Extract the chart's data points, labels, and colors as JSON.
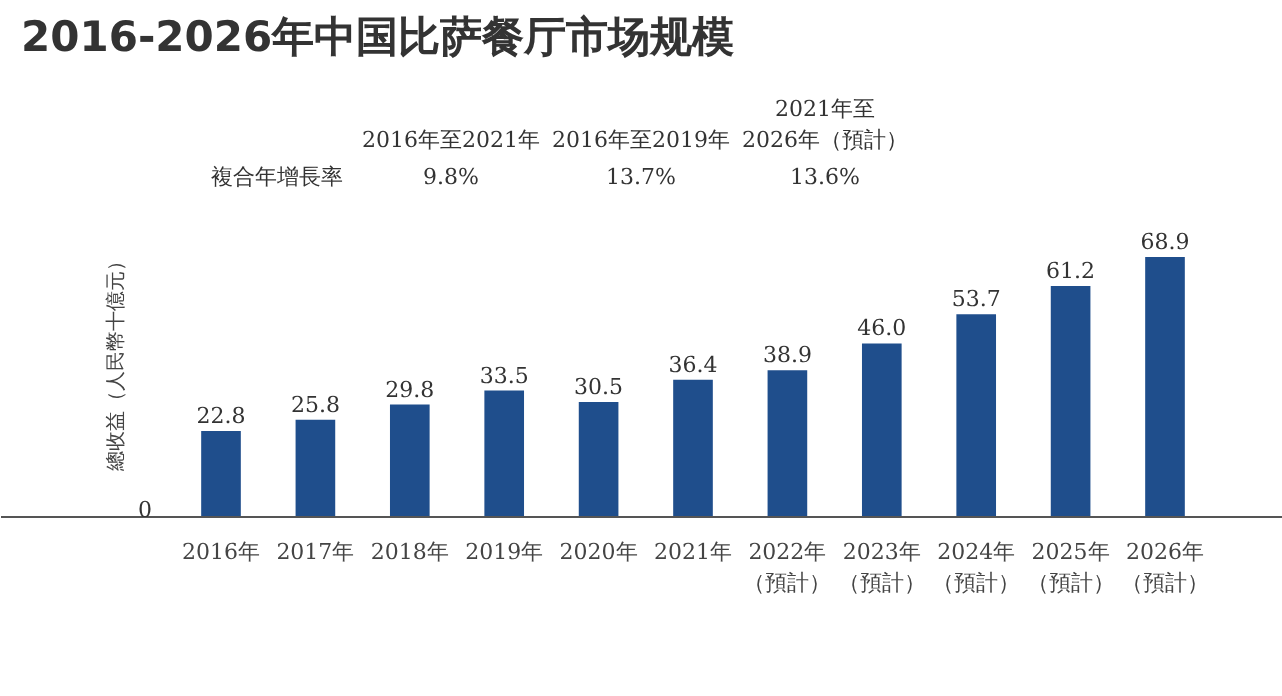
{
  "chart_data": {
    "type": "bar",
    "title": "2016-2026年中国比萨餐厅市场规模",
    "ylabel": "總收益（人民幣十億元）",
    "categories": [
      "2016年",
      "2017年",
      "2018年",
      "2019年",
      "2020年",
      "2021年",
      "2022年（預計）",
      "2023年（預計）",
      "2024年（預計）",
      "2025年（預計）",
      "2026年（預計）"
    ],
    "values": [
      22.8,
      25.8,
      29.8,
      33.5,
      30.5,
      36.4,
      38.9,
      46.0,
      53.7,
      61.2,
      68.9
    ],
    "value_labels": [
      "22.8",
      "25.8",
      "29.8",
      "33.5",
      "30.5",
      "36.4",
      "38.9",
      "46.0",
      "53.7",
      "61.2",
      "68.9"
    ],
    "color": "#1f4e8c",
    "grid": false,
    "annotations": [
      "2016年至2021年",
      "2016年至2019年",
      "2021年至2026年（預計）",
      "複合年增長率",
      "9.8%",
      "13.7%",
      "13.6%",
      "0"
    ]
  }
}
